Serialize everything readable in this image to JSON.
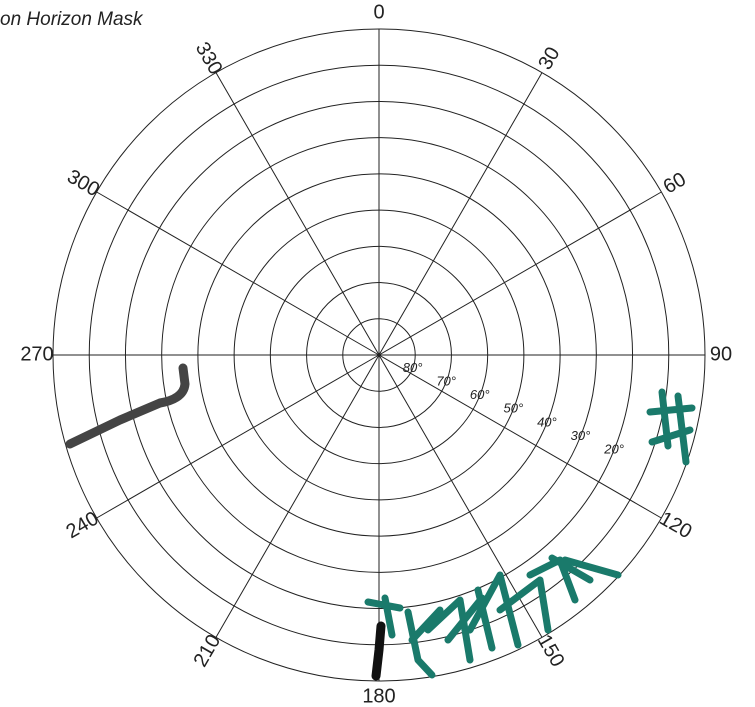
{
  "chart_data": {
    "type": "polar",
    "title": "on Horizon Mask",
    "rlim": [
      90,
      0
    ],
    "rticks": [
      {
        "value": 80,
        "label": "80°"
      },
      {
        "value": 70,
        "label": "70°"
      },
      {
        "value": 60,
        "label": "60°"
      },
      {
        "value": 50,
        "label": "50°"
      },
      {
        "value": 40,
        "label": "40°"
      },
      {
        "value": 30,
        "label": "30°"
      },
      {
        "value": 20,
        "label": "20°"
      }
    ],
    "rgrid": [
      10,
      0
    ],
    "thetaticks": [
      0,
      30,
      60,
      90,
      120,
      150,
      180,
      210,
      240,
      270,
      300,
      330
    ],
    "rlabel_angle": 112
  }
}
